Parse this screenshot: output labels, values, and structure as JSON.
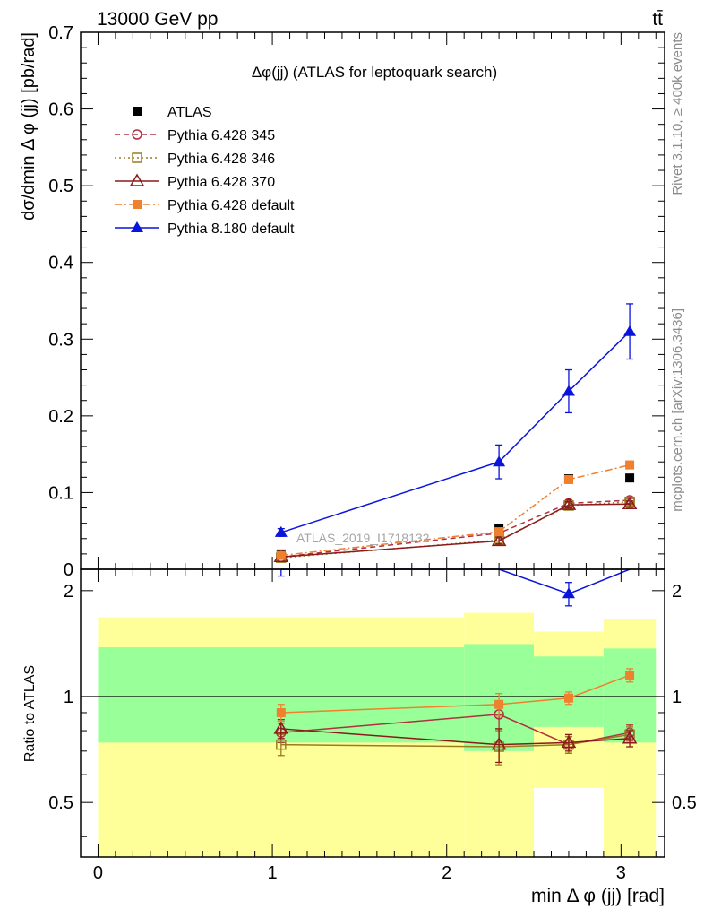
{
  "header": {
    "energy_label": "13000 GeV pp",
    "process_label": "tt̄"
  },
  "side_labels": {
    "rivet": "Rivet 3.1.10, ≥ 400k events",
    "mcplots": "mcplots.cern.ch [arXiv:1306.3436]"
  },
  "watermark": "ATLAS_2019_I1718132",
  "colors": {
    "atlas": "#000000",
    "p345": "#b03040",
    "p346": "#9b7b20",
    "p370": "#8b1a1a",
    "p6def": "#f07f2e",
    "p8def": "#0a14dc",
    "band_inner": "#99ff99",
    "band_outer": "#ffff99"
  },
  "chart_data": [
    {
      "type": "line",
      "title": "Δφ(jj) (ATLAS for leptoquark search)",
      "ylabel": "dσ/dmin Δ φ (jj) [pb/rad]",
      "xlim": [
        -0.1,
        3.25
      ],
      "ylim": [
        0,
        0.7
      ],
      "x_ticks": [
        0,
        1,
        2,
        3
      ],
      "y_ticks": [
        "0",
        "0.1",
        "0.2",
        "0.3",
        "0.4",
        "0.5",
        "0.6",
        "0.7"
      ],
      "legend_position": "top-left",
      "grid": false,
      "x": [
        1.05,
        2.3,
        2.7,
        3.05
      ],
      "series": [
        {
          "name": "ATLAS",
          "key": "atlas",
          "marker": "square-filled",
          "line": "none",
          "values": [
            0.02,
            0.053,
            0.118,
            0.119
          ]
        },
        {
          "name": "Pythia 6.428 345",
          "key": "p345",
          "marker": "circle-open",
          "line": "dashed",
          "values": [
            0.016,
            0.047,
            0.086,
            0.09
          ],
          "errors": [
            0.002,
            0.004,
            0.004,
            0.004
          ]
        },
        {
          "name": "Pythia 6.428 346",
          "key": "p346",
          "marker": "square-open",
          "line": "dotted",
          "values": [
            0.015,
            0.038,
            0.083,
            0.088
          ],
          "errors": [
            0.002,
            0.004,
            0.004,
            0.004
          ]
        },
        {
          "name": "Pythia 6.428 370",
          "key": "p370",
          "marker": "triangle-open",
          "line": "solid",
          "values": [
            0.016,
            0.037,
            0.084,
            0.085
          ],
          "errors": [
            0.002,
            0.004,
            0.004,
            0.004
          ]
        },
        {
          "name": "Pythia 6.428 default",
          "key": "p6def",
          "marker": "square-filled",
          "line": "dashdot",
          "values": [
            0.018,
            0.049,
            0.117,
            0.136
          ],
          "errors": [
            0.002,
            0.004,
            0.005,
            0.005
          ]
        },
        {
          "name": "Pythia 8.180 default",
          "key": "p8def",
          "marker": "triangle-filled",
          "line": "solid",
          "values": [
            0.048,
            0.14,
            0.232,
            0.31
          ],
          "errors": [
            0.005,
            0.022,
            0.028,
            0.036
          ]
        }
      ]
    },
    {
      "type": "line",
      "xlabel": "min Δ φ (jj) [rad]",
      "ylabel": "Ratio to ATLAS",
      "xlim": [
        -0.1,
        3.25
      ],
      "ylim": [
        0.35,
        2.3
      ],
      "y_scale": "log",
      "x_ticks": [
        0,
        1,
        2,
        3
      ],
      "y_ticks": [
        "0.5",
        "1",
        "2"
      ],
      "reference_line": 1,
      "bands": {
        "bin_edges": [
          0,
          2.1,
          2.5,
          2.9,
          3.2
        ],
        "inner_low": [
          0.74,
          0.7,
          0.82,
          0.74
        ],
        "inner_high": [
          1.38,
          1.41,
          1.3,
          1.37
        ],
        "outer_low": [
          0.35,
          0.35,
          0.55,
          0.35
        ],
        "outer_high": [
          1.68,
          1.73,
          1.53,
          1.66
        ]
      },
      "x": [
        1.05,
        2.3,
        2.7,
        3.05
      ],
      "series": [
        {
          "name": "Pythia 6.428 345",
          "key": "p345",
          "values": [
            0.79,
            0.89,
            0.73,
            0.79
          ],
          "errors": [
            0.05,
            0.08,
            0.04,
            0.04
          ]
        },
        {
          "name": "Pythia 6.428 346",
          "key": "p346",
          "values": [
            0.73,
            0.72,
            0.73,
            0.78
          ],
          "errors": [
            0.05,
            0.08,
            0.04,
            0.04
          ]
        },
        {
          "name": "Pythia 6.428 370",
          "key": "p370",
          "values": [
            0.81,
            0.73,
            0.74,
            0.76
          ],
          "errors": [
            0.05,
            0.08,
            0.04,
            0.04
          ]
        },
        {
          "name": "Pythia 6.428 default",
          "key": "p6def",
          "values": [
            0.9,
            0.95,
            0.99,
            1.15
          ],
          "errors": [
            0.05,
            0.07,
            0.04,
            0.05
          ]
        },
        {
          "name": "Pythia 8.180 default",
          "key": "p8def",
          "values": [
            2.4,
            2.64,
            1.96,
            2.6
          ],
          "errors": [
            0.2,
            0.3,
            0.15,
            0.3
          ]
        }
      ]
    }
  ]
}
